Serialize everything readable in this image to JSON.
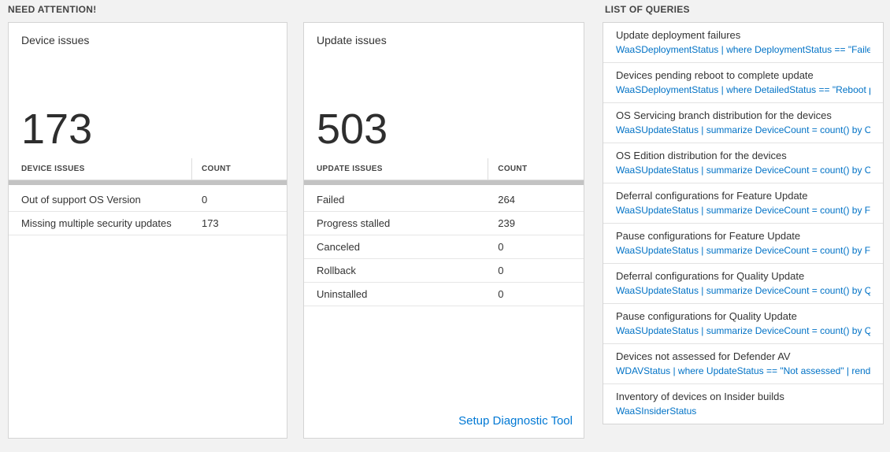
{
  "colors": {
    "background": "#f2f2f2",
    "query_blue": "#0072c6",
    "link_blue": "#0078d4"
  },
  "sections": {
    "need_attention_title": "NEED ATTENTION!",
    "queries_title": "LIST OF QUERIES"
  },
  "cards": [
    {
      "title": "Device issues",
      "count": "173",
      "table": {
        "header_label": "DEVICE ISSUES",
        "header_count": "COUNT",
        "rows": [
          {
            "label": "Out of support OS Version",
            "count": "0"
          },
          {
            "label": "Missing multiple security updates",
            "count": "173"
          }
        ]
      }
    },
    {
      "title": "Update issues",
      "count": "503",
      "table": {
        "header_label": "UPDATE ISSUES",
        "header_count": "COUNT",
        "rows": [
          {
            "label": "Failed",
            "count": "264"
          },
          {
            "label": "Progress stalled",
            "count": "239"
          },
          {
            "label": "Canceled",
            "count": "0"
          },
          {
            "label": "Rollback",
            "count": "0"
          },
          {
            "label": "Uninstalled",
            "count": "0"
          }
        ]
      },
      "footer_link": "Setup Diagnostic Tool"
    }
  ],
  "query_list": {
    "items": [
      {
        "title": "Update deployment failures",
        "query": "WaaSDeploymentStatus | where DeploymentStatus == \"Failed\" |..."
      },
      {
        "title": "Devices pending reboot to complete update",
        "query": "WaaSDeploymentStatus | where DetailedStatus == \"Reboot pend..."
      },
      {
        "title": "OS Servicing branch distribution for the devices",
        "query": "WaaSUpdateStatus | summarize DeviceCount = count() by OSSer..."
      },
      {
        "title": "OS Edition distribution for the devices",
        "query": "WaaSUpdateStatus | summarize DeviceCount = count() by OSEdit..."
      },
      {
        "title": "Deferral configurations for Feature Update",
        "query": "WaaSUpdateStatus | summarize DeviceCount = count() by Featur..."
      },
      {
        "title": "Pause configurations for Feature Update",
        "query": "WaaSUpdateStatus | summarize DeviceCount = count() by Featur..."
      },
      {
        "title": "Deferral configurations for Quality Update",
        "query": "WaaSUpdateStatus | summarize DeviceCount = count() by Qualit..."
      },
      {
        "title": "Pause configurations for Quality Update",
        "query": "WaaSUpdateStatus | summarize DeviceCount = count() by Qualit..."
      },
      {
        "title": "Devices not assessed for Defender AV",
        "query": "WDAVStatus | where UpdateStatus == \"Not assessed\" | render ta..."
      },
      {
        "title": "Inventory of devices on Insider builds",
        "query": "WaaSInsiderStatus"
      }
    ]
  }
}
